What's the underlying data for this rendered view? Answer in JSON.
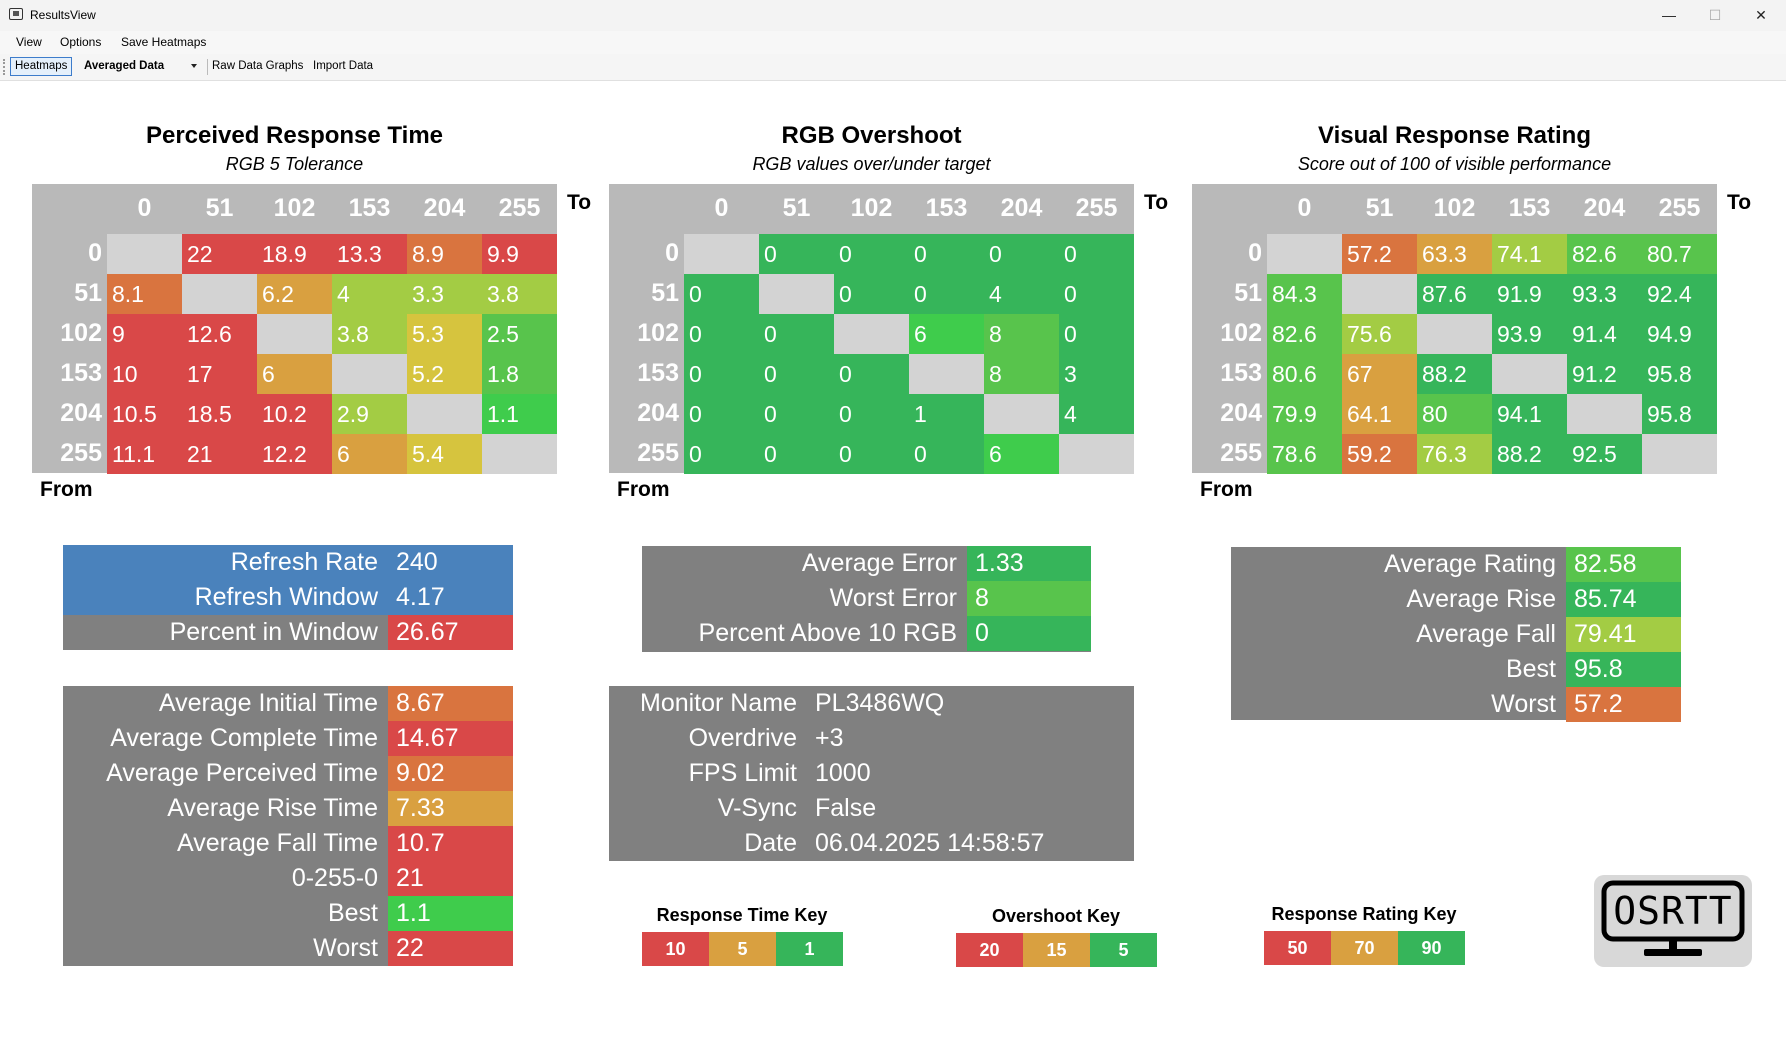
{
  "window": {
    "title": "ResultsView",
    "minimize": "—",
    "maximize": "☐",
    "close": "✕"
  },
  "menu": [
    "View",
    "Options",
    "Save Heatmaps"
  ],
  "toolbar": {
    "heatmaps": "Heatmaps",
    "mode": "Averaged Data",
    "raw": "Raw Data Graphs",
    "import": "Import Data"
  },
  "axis": {
    "to": "To",
    "from": "From",
    "levels": [
      "0",
      "51",
      "102",
      "153",
      "204",
      "255"
    ]
  },
  "colors": {
    "red": "#d94848",
    "orange": "#d9743f",
    "amber": "#d9a040",
    "yellow": "#d6c43e",
    "lime": "#a3cc44",
    "green": "#58c44c",
    "bright": "#3fcc4c",
    "deep": "#36b55a",
    "blank": "#d3d3d3",
    "blue": "#4a82bc",
    "gray": "#808080"
  },
  "heatmaps": [
    {
      "title": "Perceived Response Time",
      "subtitle": "RGB 5 Tolerance",
      "rows": [
        [
          [
            "",
            ""
          ],
          [
            "22",
            "red"
          ],
          [
            "18.9",
            "red"
          ],
          [
            "13.3",
            "red"
          ],
          [
            "8.9",
            "orange"
          ],
          [
            "9.9",
            "red"
          ]
        ],
        [
          [
            "8.1",
            "orange"
          ],
          [
            "",
            ""
          ],
          [
            "6.2",
            "amber"
          ],
          [
            "4",
            "lime"
          ],
          [
            "3.3",
            "lime"
          ],
          [
            "3.8",
            "lime"
          ]
        ],
        [
          [
            "9",
            "red"
          ],
          [
            "12.6",
            "red"
          ],
          [
            "",
            ""
          ],
          [
            "3.8",
            "lime"
          ],
          [
            "5.3",
            "yellow"
          ],
          [
            "2.5",
            "green"
          ]
        ],
        [
          [
            "10",
            "red"
          ],
          [
            "17",
            "red"
          ],
          [
            "6",
            "amber"
          ],
          [
            "",
            ""
          ],
          [
            "5.2",
            "yellow"
          ],
          [
            "1.8",
            "green"
          ]
        ],
        [
          [
            "10.5",
            "red"
          ],
          [
            "18.5",
            "red"
          ],
          [
            "10.2",
            "red"
          ],
          [
            "2.9",
            "lime"
          ],
          [
            "",
            ""
          ],
          [
            "1.1",
            "bright"
          ]
        ],
        [
          [
            "11.1",
            "red"
          ],
          [
            "21",
            "red"
          ],
          [
            "12.2",
            "red"
          ],
          [
            "6",
            "amber"
          ],
          [
            "5.4",
            "yellow"
          ],
          [
            "",
            ""
          ]
        ]
      ]
    },
    {
      "title": "RGB Overshoot",
      "subtitle": "RGB values over/under target",
      "rows": [
        [
          [
            "",
            ""
          ],
          [
            "0",
            "deep"
          ],
          [
            "0",
            "deep"
          ],
          [
            "0",
            "deep"
          ],
          [
            "0",
            "deep"
          ],
          [
            "0",
            "deep"
          ]
        ],
        [
          [
            "0",
            "deep"
          ],
          [
            "",
            ""
          ],
          [
            "0",
            "deep"
          ],
          [
            "0",
            "deep"
          ],
          [
            "4",
            "deep"
          ],
          [
            "0",
            "deep"
          ]
        ],
        [
          [
            "0",
            "deep"
          ],
          [
            "0",
            "deep"
          ],
          [
            "",
            ""
          ],
          [
            "6",
            "bright"
          ],
          [
            "8",
            "green"
          ],
          [
            "0",
            "deep"
          ]
        ],
        [
          [
            "0",
            "deep"
          ],
          [
            "0",
            "deep"
          ],
          [
            "0",
            "deep"
          ],
          [
            "",
            ""
          ],
          [
            "8",
            "green"
          ],
          [
            "3",
            "deep"
          ]
        ],
        [
          [
            "0",
            "deep"
          ],
          [
            "0",
            "deep"
          ],
          [
            "0",
            "deep"
          ],
          [
            "1",
            "deep"
          ],
          [
            "",
            ""
          ],
          [
            "4",
            "deep"
          ]
        ],
        [
          [
            "0",
            "deep"
          ],
          [
            "0",
            "deep"
          ],
          [
            "0",
            "deep"
          ],
          [
            "0",
            "deep"
          ],
          [
            "6",
            "bright"
          ],
          [
            "",
            ""
          ]
        ]
      ]
    },
    {
      "title": "Visual Response Rating",
      "subtitle": "Score out of 100 of visible performance",
      "rows": [
        [
          [
            "",
            ""
          ],
          [
            "57.2",
            "orange"
          ],
          [
            "63.3",
            "amber"
          ],
          [
            "74.1",
            "lime"
          ],
          [
            "82.6",
            "green"
          ],
          [
            "80.7",
            "green"
          ]
        ],
        [
          [
            "84.3",
            "green"
          ],
          [
            "",
            ""
          ],
          [
            "87.6",
            "deep"
          ],
          [
            "91.9",
            "deep"
          ],
          [
            "93.3",
            "deep"
          ],
          [
            "92.4",
            "deep"
          ]
        ],
        [
          [
            "82.6",
            "green"
          ],
          [
            "75.6",
            "lime"
          ],
          [
            "",
            ""
          ],
          [
            "93.9",
            "deep"
          ],
          [
            "91.4",
            "deep"
          ],
          [
            "94.9",
            "deep"
          ]
        ],
        [
          [
            "80.6",
            "green"
          ],
          [
            "67",
            "amber"
          ],
          [
            "88.2",
            "deep"
          ],
          [
            "",
            ""
          ],
          [
            "91.2",
            "deep"
          ],
          [
            "95.8",
            "deep"
          ]
        ],
        [
          [
            "79.9",
            "green"
          ],
          [
            "64.1",
            "amber"
          ],
          [
            "80",
            "green"
          ],
          [
            "94.1",
            "deep"
          ],
          [
            "",
            ""
          ],
          [
            "95.8",
            "deep"
          ]
        ],
        [
          [
            "78.6",
            "green"
          ],
          [
            "59.2",
            "orange"
          ],
          [
            "76.3",
            "lime"
          ],
          [
            "88.2",
            "deep"
          ],
          [
            "92.5",
            "deep"
          ],
          [
            "",
            ""
          ]
        ]
      ]
    }
  ],
  "refresh": [
    {
      "label": "Refresh Rate",
      "value": "240",
      "color": "blue"
    },
    {
      "label": "Refresh Window",
      "value": "4.17",
      "color": "blue"
    },
    {
      "label": "Percent in Window",
      "value": "26.67",
      "color": "red"
    }
  ],
  "times": [
    {
      "label": "Average Initial Time",
      "value": "8.67",
      "color": "orange"
    },
    {
      "label": "Average Complete Time",
      "value": "14.67",
      "color": "red"
    },
    {
      "label": "Average Perceived Time",
      "value": "9.02",
      "color": "orange"
    },
    {
      "label": "Average Rise Time",
      "value": "7.33",
      "color": "amber"
    },
    {
      "label": "Average Fall Time",
      "value": "10.7",
      "color": "red"
    },
    {
      "label": "0-255-0",
      "value": "21",
      "color": "red"
    },
    {
      "label": "Best",
      "value": "1.1",
      "color": "bright"
    },
    {
      "label": "Worst",
      "value": "22",
      "color": "red"
    }
  ],
  "errors": [
    {
      "label": "Average Error",
      "value": "1.33",
      "color": "deep"
    },
    {
      "label": "Worst Error",
      "value": "8",
      "color": "green"
    },
    {
      "label": "Percent Above 10 RGB",
      "value": "0",
      "color": "deep"
    }
  ],
  "monitor": [
    {
      "label": "Monitor Name",
      "value": "PL3486WQ"
    },
    {
      "label": "Overdrive",
      "value": "+3"
    },
    {
      "label": "FPS Limit",
      "value": "1000"
    },
    {
      "label": "V-Sync",
      "value": "False"
    },
    {
      "label": "Date",
      "value": "06.04.2025 14:58:57"
    }
  ],
  "ratings": [
    {
      "label": "Average Rating",
      "value": "82.58",
      "color": "green"
    },
    {
      "label": "Average Rise",
      "value": "85.74",
      "color": "deep"
    },
    {
      "label": "Average Fall",
      "value": "79.41",
      "color": "lime"
    },
    {
      "label": "Best",
      "value": "95.8",
      "color": "deep"
    },
    {
      "label": "Worst",
      "value": "57.2",
      "color": "orange"
    }
  ],
  "keys": [
    {
      "title": "Response Time Key",
      "items": [
        [
          "10",
          "red"
        ],
        [
          "5",
          "amber"
        ],
        [
          "1",
          "deep"
        ]
      ]
    },
    {
      "title": "Overshoot Key",
      "items": [
        [
          "20",
          "red"
        ],
        [
          "15",
          "amber"
        ],
        [
          "5",
          "deep"
        ]
      ]
    },
    {
      "title": "Response Rating Key",
      "items": [
        [
          "50",
          "red"
        ],
        [
          "70",
          "amber"
        ],
        [
          "90",
          "deep"
        ]
      ]
    }
  ],
  "logo": {
    "text": "OSRTT"
  }
}
